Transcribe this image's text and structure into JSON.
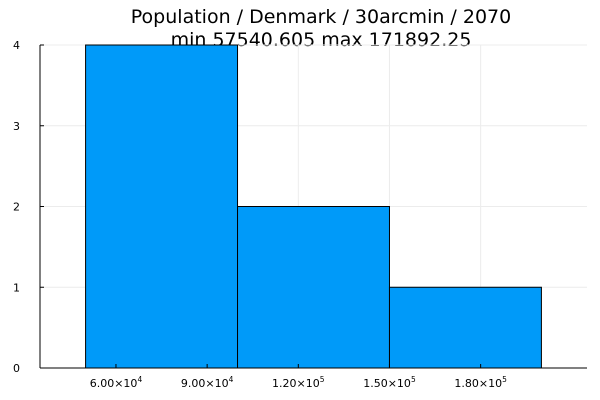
{
  "chart_data": {
    "type": "bar",
    "subtype": "histogram",
    "title_lines": [
      "Population / Denmark / 30arcmin / 2070",
      "min 57540.605  max 171892.25"
    ],
    "xlabel": "",
    "ylabel": "",
    "bins": [
      {
        "x0": 50000,
        "x1": 100000,
        "count": 4
      },
      {
        "x0": 100000,
        "x1": 150000,
        "count": 2
      },
      {
        "x0": 150000,
        "x1": 200000,
        "count": 1
      }
    ],
    "xlim": [
      35000,
      215000
    ],
    "ylim": [
      0,
      4
    ],
    "x_ticks": [
      {
        "value": 60000,
        "mantissa": "6.00×10",
        "exp": "4"
      },
      {
        "value": 90000,
        "mantissa": "9.00×10",
        "exp": "4"
      },
      {
        "value": 120000,
        "mantissa": "1.20×10",
        "exp": "5"
      },
      {
        "value": 150000,
        "mantissa": "1.50×10",
        "exp": "5"
      },
      {
        "value": 180000,
        "mantissa": "1.80×10",
        "exp": "5"
      }
    ],
    "y_ticks": [
      0,
      1,
      2,
      3,
      4
    ],
    "grid": true,
    "legend": "none",
    "colors": {
      "bar_fill": "#009af9",
      "bar_edge": "#000000",
      "grid": "#ececec",
      "axis": "#000000"
    }
  }
}
